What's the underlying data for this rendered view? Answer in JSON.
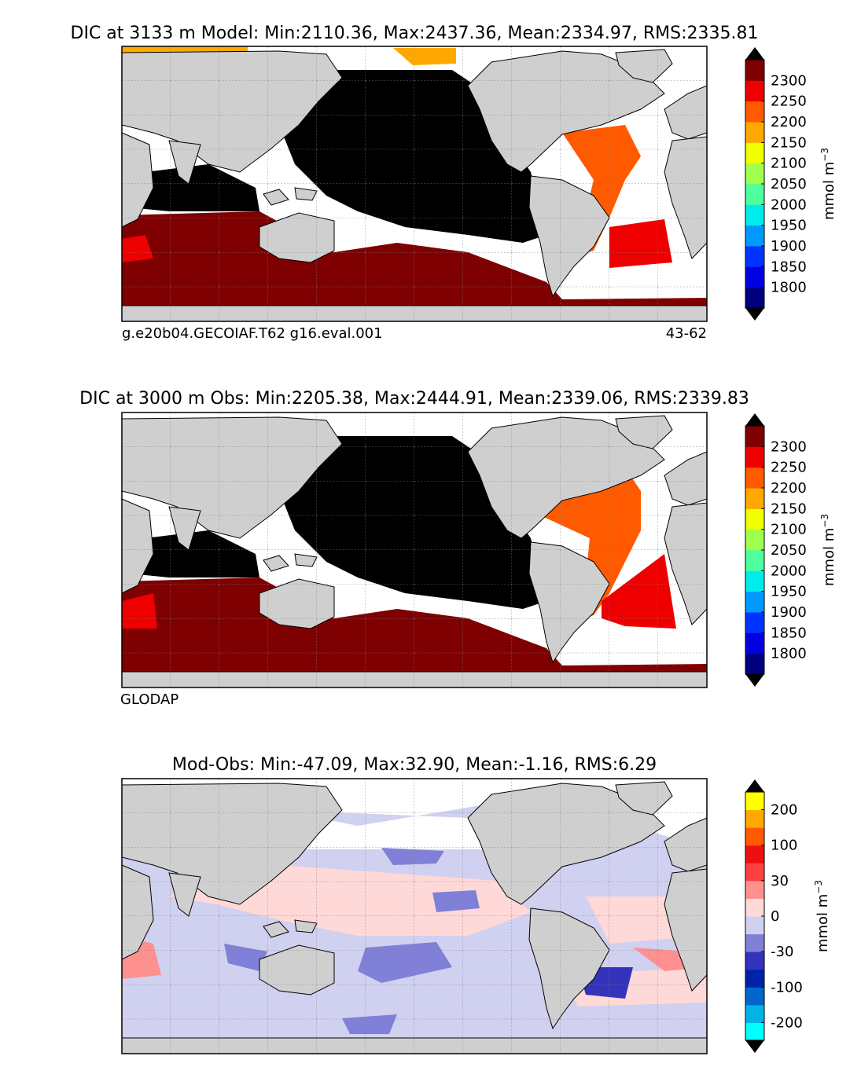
{
  "chart_data": [
    {
      "type": "heatmap",
      "name": "model",
      "title": "DIC at 3133 m Model: Min:2110.36, Max:2437.36, Mean:2334.97, RMS:2335.81",
      "left_label": "g.e20b04.GECOIAF.T62 g16.eval.001",
      "right_label": "43-62",
      "stats": {
        "depth_m": 3133,
        "min": 2110.36,
        "max": 2437.36,
        "mean": 2334.97,
        "rms": 2335.81
      },
      "colorbar": {
        "unit": "mmol m",
        "unit_exp": "−3",
        "levels": [
          1750,
          1800,
          1850,
          1900,
          1950,
          2000,
          2050,
          2100,
          2150,
          2200,
          2250,
          2300,
          2350
        ],
        "tick_labels": [
          "1800",
          "1850",
          "1900",
          "1950",
          "2000",
          "2050",
          "2100",
          "2150",
          "2200",
          "2250",
          "2300"
        ],
        "colors": [
          "#00007f",
          "#0000e0",
          "#0033ff",
          "#0099ff",
          "#00ecec",
          "#4dff9f",
          "#9fff4d",
          "#f0ff00",
          "#ffa800",
          "#ff5a00",
          "#ee0000",
          "#7f0000"
        ],
        "under_color": "#000000",
        "over_color": "#000000"
      }
    },
    {
      "type": "heatmap",
      "name": "obs",
      "title": "DIC at 3000 m Obs: Min:2205.38, Max:2444.91, Mean:2339.06, RMS:2339.83",
      "left_label": "GLODAP",
      "stats": {
        "depth_m": 3000,
        "min": 2205.38,
        "max": 2444.91,
        "mean": 2339.06,
        "rms": 2339.83
      },
      "colorbar": {
        "unit": "mmol m",
        "unit_exp": "−3",
        "levels": [
          1750,
          1800,
          1850,
          1900,
          1950,
          2000,
          2050,
          2100,
          2150,
          2200,
          2250,
          2300,
          2350
        ],
        "tick_labels": [
          "1800",
          "1850",
          "1900",
          "1950",
          "2000",
          "2050",
          "2100",
          "2150",
          "2200",
          "2250",
          "2300"
        ],
        "colors": [
          "#00007f",
          "#0000e0",
          "#0033ff",
          "#0099ff",
          "#00ecec",
          "#4dff9f",
          "#9fff4d",
          "#f0ff00",
          "#ffa800",
          "#ff5a00",
          "#ee0000",
          "#7f0000"
        ],
        "under_color": "#000000",
        "over_color": "#000000"
      }
    },
    {
      "type": "heatmap",
      "name": "diff",
      "title": "Mod-Obs: Min:-47.09, Max:32.90, Mean:-1.16, RMS:6.29",
      "stats": {
        "min": -47.09,
        "max": 32.9,
        "mean": -1.16,
        "rms": 6.29
      },
      "colorbar": {
        "unit": "mmol m",
        "unit_exp": "−3",
        "levels": [
          -300,
          -200,
          -150,
          -100,
          -50,
          -30,
          -10,
          0,
          10,
          30,
          50,
          100,
          150,
          200,
          300
        ],
        "tick_labels": [
          "-200",
          "-100",
          "-30",
          "0",
          "30",
          "100",
          "200"
        ],
        "tick_levels": [
          -200,
          -100,
          -30,
          0,
          30,
          100,
          200
        ],
        "colors": [
          "#00ffff",
          "#00b4e6",
          "#0066cc",
          "#0022aa",
          "#3333bb",
          "#8080d8",
          "#d0d0f0",
          "#ffd8d8",
          "#ff9090",
          "#ff4040",
          "#ee1010",
          "#ff5a00",
          "#ffa800",
          "#ffff00"
        ],
        "under_color": "#000000",
        "over_color": "#000000"
      }
    }
  ]
}
